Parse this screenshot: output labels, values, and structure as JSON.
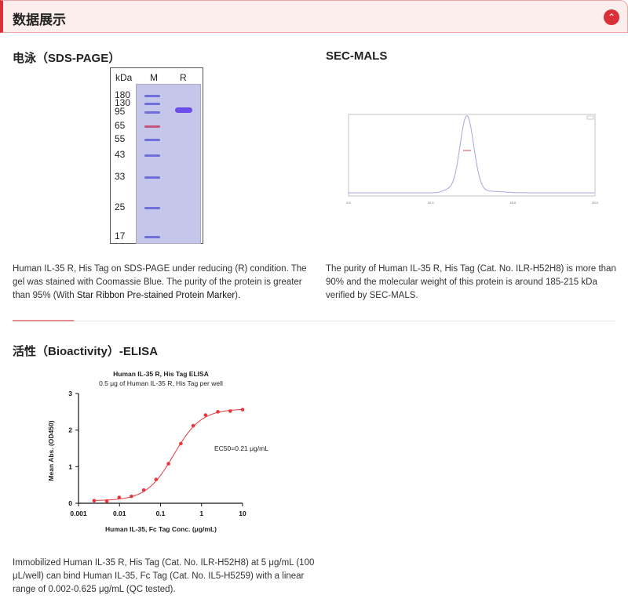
{
  "header": {
    "title": "数据展示",
    "collapse_icon": "chevron-up-icon",
    "accent": "#d9303a"
  },
  "sds": {
    "title": "电泳（SDS-PAGE）",
    "gel": {
      "kda_label": "kDa",
      "lane_m": "M",
      "lane_r": "R",
      "markers": [
        "180",
        "130",
        "95",
        "65",
        "55",
        "43",
        "33",
        "25",
        "17"
      ]
    },
    "desc_1": "Human IL-35 R, His Tag on SDS-PAGE under reducing (R) condition. The gel was stained with Coomassie Blue. The purity of the protein is greater than 95% (With ",
    "desc_link": "Star Ribbon Pre-stained Protein Marker",
    "desc_2": ")."
  },
  "sec": {
    "title": "SEC-MALS",
    "x_ticks": [
      "5.0",
      "10.0",
      "15.0",
      "20.0"
    ],
    "desc": "The purity of Human IL-35 R, His Tag (Cat. No. ILR-H52H8) is more than 90% and the molecular weight of this protein is around 185-215 kDa verified by SEC-MALS."
  },
  "elisa": {
    "title": "活性（Bioactivity）-ELISA",
    "desc": "Immobilized Human IL-35 R, His Tag (Cat. No. ILR-H52H8) at 5 μg/mL (100 μL/well) can bind Human IL-35, Fc Tag (Cat. No. IL5-H5259) with a linear range of 0.002-0.625 μg/mL (QC tested)."
  },
  "chart_data": {
    "type": "scatter",
    "title": "Human IL-35 R, His Tag ELISA",
    "subtitle": "0.5 μg of Human IL-35 R, His Tag per well",
    "xlabel": "Human IL-35, Fc Tag Conc. (μg/mL)",
    "ylabel": "Mean Abs. (OD450)",
    "x_scale": "log",
    "xlim": [
      0.001,
      10
    ],
    "ylim": [
      0,
      3
    ],
    "x_ticks": [
      "0.001",
      "0.01",
      "0.1",
      "1",
      "10"
    ],
    "y_ticks": [
      "0",
      "1",
      "2",
      "3"
    ],
    "annotation": "EC50=0.21 μg/mL",
    "color": "#e8383d",
    "fit": "4PL sigmoid",
    "x": [
      0.0024,
      0.0049,
      0.0098,
      0.0195,
      0.039,
      0.078,
      0.156,
      0.3125,
      0.625,
      1.25,
      2.5,
      5,
      10
    ],
    "y": [
      0.07,
      0.06,
      0.16,
      0.19,
      0.36,
      0.65,
      1.08,
      1.63,
      2.12,
      2.41,
      2.5,
      2.52,
      2.56
    ]
  }
}
